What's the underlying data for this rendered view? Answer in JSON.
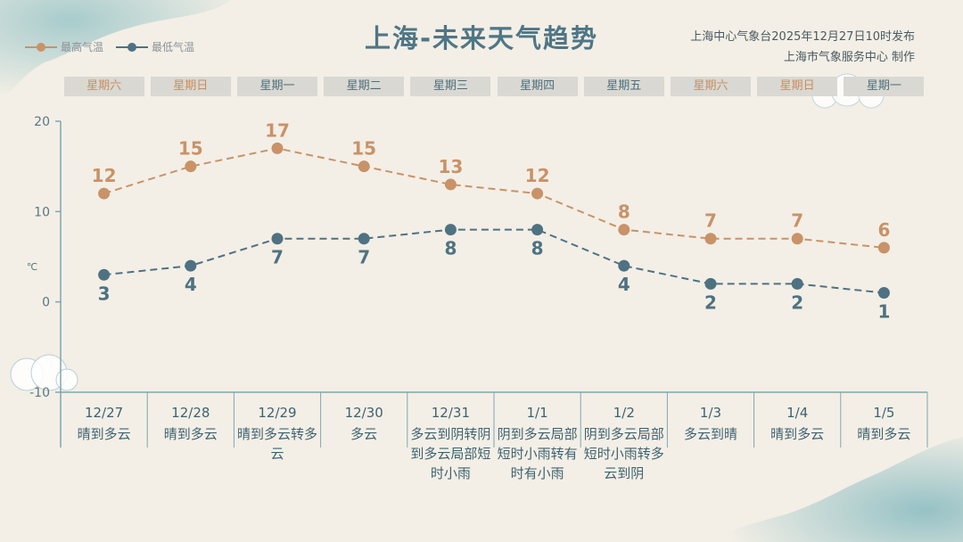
{
  "title": "上海-未来天气趋势",
  "source": {
    "line1": "上海中心气象台2025年12月27日10时发布",
    "line2": "上海市气象服务中心  制作"
  },
  "legend": {
    "high": "最高气温",
    "low": "最低气温"
  },
  "colors": {
    "high": "#c99268",
    "low": "#4e7282",
    "axis": "#7fa6b3",
    "weekend_text": "#c58f63",
    "weekday_text": "#4f6f7c"
  },
  "unit": "℃",
  "weekdays": [
    "星期六",
    "星期日",
    "星期一",
    "星期二",
    "星期三",
    "星期四",
    "星期五",
    "星期六",
    "星期日",
    "星期一"
  ],
  "dates": [
    "12/27",
    "12/28",
    "12/29",
    "12/30",
    "12/31",
    "1/1",
    "1/2",
    "1/3",
    "1/4",
    "1/5"
  ],
  "weather": [
    "晴到多云",
    "晴到多云",
    "晴到多云转多云",
    "多云",
    "多云到阴转阴到多云局部短时小雨",
    "阴到多云局部短时小雨转有时有小雨",
    "阴到多云局部短时小雨转多云到阴",
    "多云到晴",
    "晴到多云",
    "晴到多云"
  ],
  "chart_data": {
    "type": "line",
    "title": "上海-未来天气趋势",
    "xlabel": "",
    "ylabel": "℃",
    "categories": [
      "12/27",
      "12/28",
      "12/29",
      "12/30",
      "12/31",
      "1/1",
      "1/2",
      "1/3",
      "1/4",
      "1/5"
    ],
    "ylim": [
      -10,
      20
    ],
    "yticks": [
      -10,
      0,
      10,
      20
    ],
    "grid": false,
    "legend": "top-left",
    "series": [
      {
        "name": "最高气温",
        "values": [
          12,
          15,
          17,
          15,
          13,
          12,
          8,
          7,
          7,
          6
        ],
        "color": "#c99268",
        "label_position": "above"
      },
      {
        "name": "最低气温",
        "values": [
          3,
          4,
          7,
          7,
          8,
          8,
          4,
          2,
          2,
          1
        ],
        "color": "#4e7282",
        "label_position": "below"
      }
    ]
  }
}
